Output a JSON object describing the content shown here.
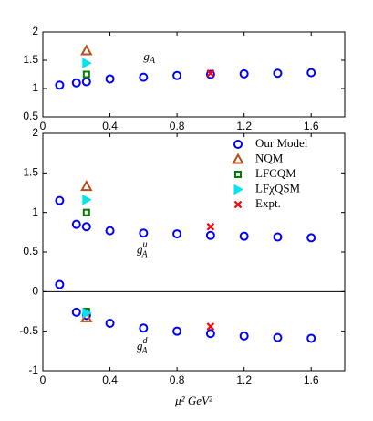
{
  "chart_data": [
    {
      "type": "scatter",
      "annotation": {
        "base": "g",
        "sub": "A"
      },
      "xlim": [
        0,
        1.8
      ],
      "xticks": [
        0,
        0.4,
        0.8,
        1.2,
        1.6
      ],
      "ylim": [
        0.5,
        2
      ],
      "yticks": [
        0.5,
        1,
        1.5,
        2
      ],
      "series": [
        {
          "color": "#0000ff",
          "marker": "circle",
          "x": [
            0.1,
            0.2,
            0.26,
            0.4,
            0.6,
            0.8,
            1.0,
            1.2,
            1.4,
            1.6
          ],
          "values": [
            1.06,
            1.1,
            1.12,
            1.17,
            1.2,
            1.23,
            1.25,
            1.26,
            1.27,
            1.28
          ]
        },
        {
          "color": "#b5501c",
          "marker": "triangle",
          "x": [
            0.26
          ],
          "values": [
            1.67
          ]
        },
        {
          "color": "#008000",
          "marker": "square",
          "x": [
            0.26
          ],
          "values": [
            1.25
          ]
        },
        {
          "color": "#00e5ee",
          "marker": "triangle-right",
          "x": [
            0.26
          ],
          "values": [
            1.45
          ]
        },
        {
          "color": "#ff0000",
          "marker": "cross",
          "x": [
            1.0
          ],
          "values": [
            1.27
          ]
        }
      ]
    },
    {
      "type": "scatter",
      "xlabel": "μ² GeV²",
      "annotation_u": {
        "base": "g",
        "sup": "u",
        "sub": "A"
      },
      "annotation_d": {
        "base": "g",
        "sup": "d",
        "sub": "A"
      },
      "xlim": [
        0,
        1.8
      ],
      "xticks": [
        0,
        0.4,
        0.8,
        1.2,
        1.6
      ],
      "ylim": [
        -1,
        2
      ],
      "yticks": [
        -1,
        -0.5,
        0,
        0.5,
        1,
        1.5,
        2
      ],
      "zero_line": true,
      "legend": "upper right",
      "series": [
        {
          "name": "Our Model",
          "color": "#0000ff",
          "marker": "circle",
          "x": [
            0.1,
            0.2,
            0.26,
            0.4,
            0.6,
            0.8,
            1.0,
            1.2,
            1.4,
            1.6
          ],
          "values_u": [
            1.15,
            0.85,
            0.82,
            0.77,
            0.74,
            0.73,
            0.71,
            0.7,
            0.69,
            0.68
          ],
          "values_d": [
            0.09,
            -0.26,
            -0.3,
            -0.4,
            -0.46,
            -0.5,
            -0.53,
            -0.56,
            -0.58,
            -0.59
          ]
        },
        {
          "name": "NQM",
          "color": "#b5501c",
          "marker": "triangle",
          "x": [
            0.26
          ],
          "values_u": [
            1.33
          ],
          "values_d": [
            -0.33
          ]
        },
        {
          "name": "LFCQM",
          "color": "#008000",
          "marker": "square",
          "x": [
            0.26
          ],
          "values_u": [
            1.0
          ],
          "values_d": [
            -0.25
          ]
        },
        {
          "name": "LFχQSM",
          "color": "#00e5ee",
          "marker": "triangle-right",
          "x": [
            0.26
          ],
          "values_u": [
            1.16
          ],
          "values_d": [
            -0.27
          ]
        },
        {
          "name": "Expt.",
          "color": "#ff0000",
          "marker": "cross",
          "x": [
            1.0
          ],
          "values_u": [
            0.82
          ],
          "values_d": [
            -0.44
          ]
        }
      ]
    }
  ]
}
